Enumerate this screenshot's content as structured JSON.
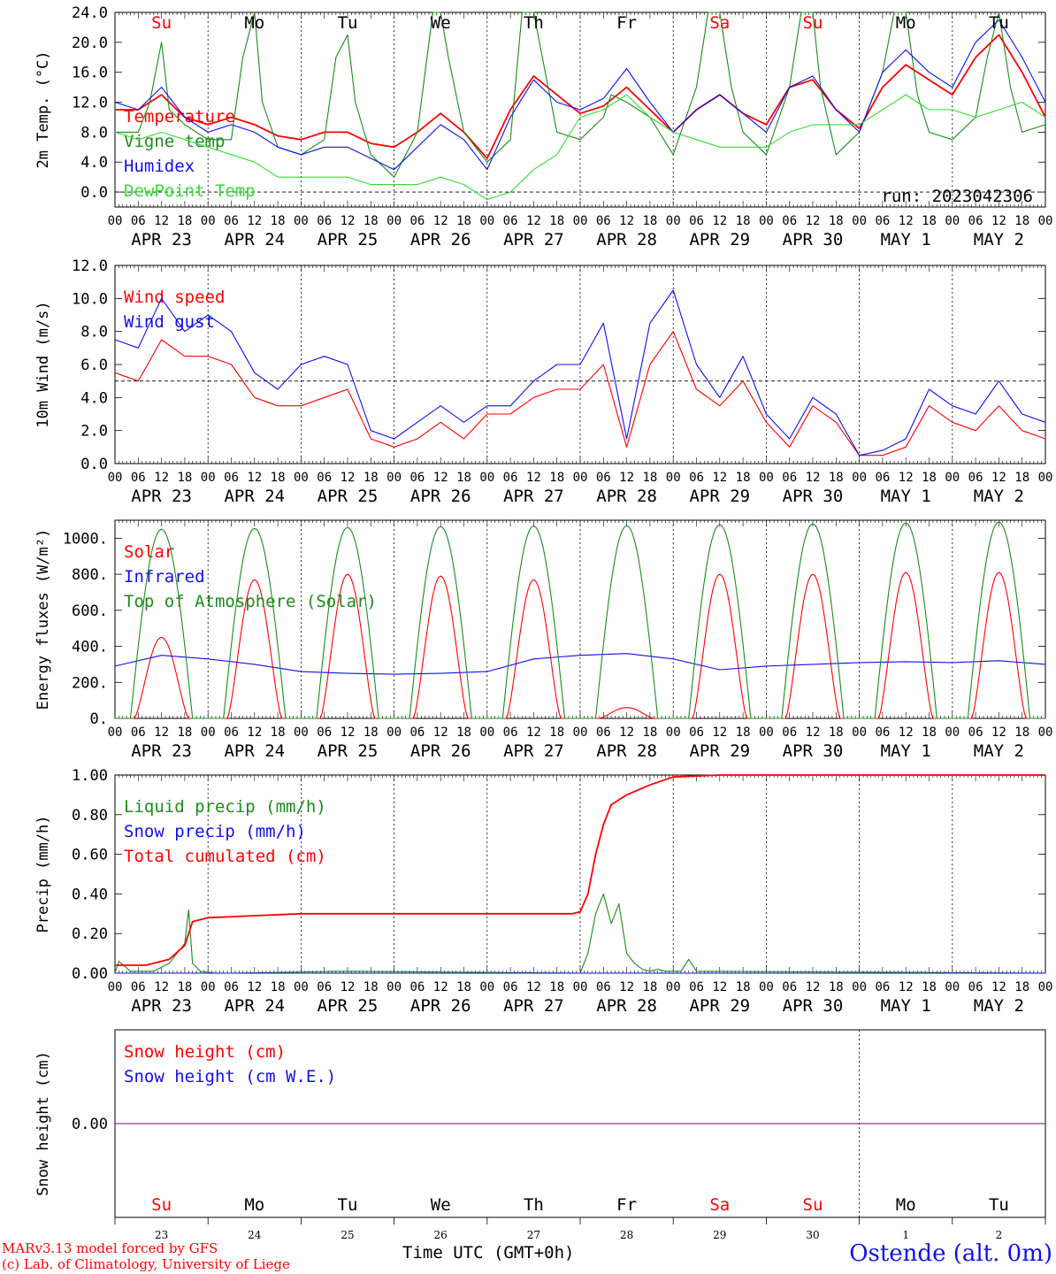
{
  "colors": {
    "red": "#ff0000",
    "green": "#1a8c1a",
    "lightgreen": "#33dd33",
    "blue": "#1010ee",
    "purple": "#800080",
    "axis": "#000000"
  },
  "footer": {
    "credit_1": "MARv3.13 model forced by GFS",
    "credit_2": "(c) Lab. of Climatology, University of Liege",
    "time_label_a": "Time UTC (GMT+0h)",
    "time_label_b": "Time UTC",
    "station": "Ostende (alt. 0m)"
  },
  "days": [
    {
      "date": "APR 23",
      "dow": "Su",
      "weekend": true,
      "num": "23"
    },
    {
      "date": "APR 24",
      "dow": "Mo",
      "weekend": false,
      "num": "24"
    },
    {
      "date": "APR 25",
      "dow": "Tu",
      "weekend": false,
      "num": "25"
    },
    {
      "date": "APR 26",
      "dow": "We",
      "weekend": false,
      "num": "26"
    },
    {
      "date": "APR 27",
      "dow": "Th",
      "weekend": false,
      "num": "27"
    },
    {
      "date": "APR 28",
      "dow": "Fr",
      "weekend": false,
      "num": "28"
    },
    {
      "date": "APR 29",
      "dow": "Sa",
      "weekend": true,
      "num": "29"
    },
    {
      "date": "APR 30",
      "dow": "Su",
      "weekend": true,
      "num": "30"
    },
    {
      "date": "MAY  1",
      "dow": "Mo",
      "weekend": false,
      "num": "1"
    },
    {
      "date": "MAY  2",
      "dow": "Tu",
      "weekend": false,
      "num": "2"
    }
  ],
  "hour_ticks": [
    "00",
    "06",
    "12",
    "18"
  ],
  "chart_data": [
    {
      "type": "line",
      "id": "temp",
      "ylabel": "2m Temp. (°C)",
      "ylim": [
        -2,
        24
      ],
      "yticks": [
        "0.0",
        "4.0",
        "8.0",
        "12.0",
        "16.0",
        "20.0",
        "24.0"
      ],
      "ytick_values": [
        0,
        4,
        8,
        12,
        16,
        20,
        24
      ],
      "ref_line": 0,
      "annotation": "run: 2023042306",
      "show_dow": true,
      "series": [
        {
          "name": "Temperature",
          "color": "red",
          "x": [
            0,
            6,
            12,
            18,
            24,
            30,
            36,
            42,
            48,
            54,
            60,
            66,
            72,
            78,
            84,
            90,
            96,
            102,
            108,
            114,
            120,
            126,
            132,
            138,
            144,
            150,
            156,
            162,
            168,
            174,
            180,
            186,
            192,
            198,
            204,
            210,
            216,
            222,
            228,
            234,
            240
          ],
          "y": [
            11,
            11,
            13,
            10,
            9,
            10,
            9,
            7.5,
            7,
            8,
            8,
            6.5,
            6,
            8,
            10.5,
            8,
            4.5,
            11,
            15.5,
            13,
            10.5,
            11.5,
            14,
            11,
            8,
            11,
            13,
            10.5,
            9,
            14,
            15,
            11,
            8.5,
            14,
            17,
            15,
            13,
            18,
            21,
            16,
            10
          ]
        },
        {
          "name": "Vigne temp",
          "color": "green",
          "x": [
            0,
            6,
            9,
            12,
            14,
            18,
            24,
            30,
            33,
            36,
            38,
            42,
            48,
            54,
            57,
            60,
            62,
            66,
            72,
            78,
            82,
            84,
            86,
            90,
            96,
            102,
            105,
            108,
            111,
            114,
            120,
            126,
            128,
            132,
            138,
            144,
            150,
            153,
            156,
            159,
            162,
            168,
            174,
            177,
            180,
            182,
            186,
            192,
            198,
            201,
            204,
            207,
            210,
            216,
            222,
            225,
            228,
            231,
            234,
            240
          ],
          "y": [
            8,
            8,
            12,
            20,
            11,
            9,
            7,
            7,
            18,
            24,
            12,
            6,
            5,
            7,
            18,
            21,
            12,
            5,
            2,
            8,
            24,
            24,
            18,
            8,
            4,
            7,
            24,
            24,
            16,
            8,
            7,
            10,
            13,
            12,
            10,
            5,
            14,
            24,
            24,
            14,
            8,
            5,
            14,
            24,
            24,
            14,
            5,
            8,
            16,
            24,
            24,
            13,
            8,
            7,
            10,
            18,
            24,
            14,
            8,
            9
          ]
        },
        {
          "name": "Humidex",
          "color": "blue",
          "x": [
            0,
            6,
            12,
            18,
            24,
            30,
            36,
            42,
            48,
            54,
            60,
            66,
            72,
            78,
            84,
            90,
            96,
            102,
            108,
            114,
            120,
            126,
            132,
            138,
            144,
            150,
            156,
            162,
            168,
            174,
            180,
            186,
            192,
            198,
            204,
            210,
            216,
            222,
            228,
            234,
            240
          ],
          "y": [
            12,
            11,
            14,
            10,
            8,
            9,
            8,
            6,
            5,
            6,
            6,
            4.5,
            3,
            6,
            9,
            7,
            3,
            10,
            15,
            12,
            11,
            12.5,
            16.5,
            12,
            8,
            11,
            13,
            10.5,
            8,
            14,
            15.5,
            11,
            8,
            16,
            19,
            16,
            14,
            20,
            23,
            18,
            12
          ]
        },
        {
          "name": "DewPoint Temp",
          "color": "lightgreen",
          "x": [
            0,
            6,
            12,
            18,
            24,
            30,
            36,
            42,
            48,
            54,
            60,
            66,
            72,
            78,
            84,
            90,
            96,
            102,
            108,
            114,
            120,
            126,
            132,
            138,
            144,
            150,
            156,
            162,
            168,
            174,
            180,
            186,
            192,
            198,
            204,
            210,
            216,
            222,
            228,
            234,
            240
          ],
          "y": [
            8,
            7,
            8,
            7,
            6,
            5,
            4,
            2,
            2,
            2,
            2,
            1,
            1,
            1,
            2,
            1,
            -1,
            0,
            3,
            5,
            10,
            11,
            13,
            10,
            8,
            7,
            6,
            6,
            6,
            8,
            9,
            9,
            9,
            11,
            13,
            11,
            11,
            10,
            11,
            12,
            10
          ]
        }
      ]
    },
    {
      "type": "line",
      "id": "wind",
      "ylabel": "10m Wind (m/s)",
      "ylim": [
        0,
        12
      ],
      "yticks": [
        "0.0",
        "2.0",
        "4.0",
        "6.0",
        "8.0",
        "10.0",
        "12.0"
      ],
      "ytick_values": [
        0,
        2,
        4,
        6,
        8,
        10,
        12
      ],
      "ref_line": 5,
      "show_dow": false,
      "series": [
        {
          "name": "Wind speed",
          "color": "red",
          "x": [
            0,
            6,
            12,
            18,
            24,
            30,
            36,
            42,
            48,
            54,
            60,
            66,
            72,
            78,
            84,
            90,
            96,
            102,
            108,
            114,
            120,
            126,
            132,
            138,
            144,
            150,
            156,
            162,
            168,
            174,
            180,
            186,
            192,
            198,
            204,
            210,
            216,
            222,
            228,
            234,
            240
          ],
          "y": [
            5.5,
            5,
            7.5,
            6.5,
            6.5,
            6,
            4,
            3.5,
            3.5,
            4,
            4.5,
            1.5,
            1,
            1.5,
            2.5,
            1.5,
            3,
            3,
            4,
            4.5,
            4.5,
            6,
            1,
            6,
            8,
            4.5,
            3.5,
            5,
            2.5,
            1,
            3.5,
            2.5,
            0.5,
            0.5,
            1,
            3.5,
            2.5,
            2,
            3.5,
            2,
            1.5
          ]
        },
        {
          "name": "Wind gust",
          "color": "blue",
          "x": [
            0,
            6,
            12,
            18,
            24,
            30,
            36,
            42,
            48,
            54,
            60,
            66,
            72,
            78,
            84,
            90,
            96,
            102,
            108,
            114,
            120,
            126,
            132,
            138,
            144,
            150,
            156,
            162,
            168,
            174,
            180,
            186,
            192,
            198,
            204,
            210,
            216,
            222,
            228,
            234,
            240
          ],
          "y": [
            7.5,
            7,
            10,
            8,
            9,
            8,
            5.5,
            4.5,
            6,
            6.5,
            6,
            2,
            1.5,
            2.5,
            3.5,
            2.5,
            3.5,
            3.5,
            5,
            6,
            6,
            8.5,
            1.5,
            8.5,
            10.5,
            6,
            4,
            6.5,
            3,
            1.5,
            4,
            3,
            0.5,
            0.8,
            1.5,
            4.5,
            3.5,
            3,
            5,
            3,
            2.5
          ]
        }
      ]
    },
    {
      "type": "line",
      "id": "energy",
      "ylabel": "Energy fluxes (W/m²)",
      "ylim": [
        0,
        1100
      ],
      "yticks": [
        "0.",
        "200.",
        "400.",
        "600.",
        "800.",
        "1000."
      ],
      "ytick_values": [
        0,
        200,
        400,
        600,
        800,
        1000
      ],
      "show_dow": false,
      "series": [
        {
          "name": "Solar",
          "color": "red",
          "peaks": [
            450,
            770,
            800,
            790,
            770,
            60,
            800,
            800,
            810,
            810
          ]
        },
        {
          "name": "Infrared",
          "color": "blue",
          "x": [
            0,
            12,
            24,
            36,
            48,
            60,
            72,
            84,
            96,
            108,
            120,
            132,
            144,
            156,
            168,
            180,
            192,
            204,
            216,
            228,
            240
          ],
          "y": [
            290,
            350,
            330,
            300,
            260,
            250,
            245,
            250,
            260,
            330,
            350,
            360,
            330,
            270,
            290,
            300,
            310,
            315,
            310,
            320,
            300
          ]
        },
        {
          "name": "Top of Atmosphere (Solar)",
          "color": "green",
          "peaks": [
            1050,
            1055,
            1060,
            1065,
            1068,
            1070,
            1075,
            1080,
            1085,
            1090
          ]
        }
      ]
    },
    {
      "type": "line",
      "id": "precip",
      "ylabel": "Precip (mm/h)",
      "ylim": [
        0,
        1
      ],
      "yticks": [
        "0.00",
        "0.20",
        "0.40",
        "0.60",
        "0.80",
        "1.00"
      ],
      "ytick_values": [
        0,
        0.2,
        0.4,
        0.6,
        0.8,
        1.0
      ],
      "show_dow": false,
      "series": [
        {
          "name": "Liquid precip (mm/h)",
          "color": "green",
          "x": [
            0,
            1,
            4,
            10,
            14,
            16,
            18,
            19,
            20,
            22,
            26,
            30,
            60,
            120,
            122,
            124,
            126,
            128,
            130,
            132,
            134,
            136,
            138,
            140,
            142,
            144,
            146,
            148,
            150,
            240
          ],
          "y": [
            0,
            0.06,
            0.01,
            0.01,
            0.05,
            0.1,
            0.15,
            0.32,
            0.05,
            0.01,
            0,
            0,
            0.01,
            0,
            0.1,
            0.3,
            0.4,
            0.25,
            0.35,
            0.1,
            0.05,
            0.02,
            0.01,
            0.02,
            0.01,
            0.01,
            0.01,
            0.07,
            0.01,
            0
          ]
        },
        {
          "name": "Snow precip (mm/h)",
          "color": "blue",
          "x": [
            0,
            240
          ],
          "y": [
            0,
            0
          ]
        },
        {
          "name": "Total cumulated (cm)",
          "color": "red",
          "x": [
            0,
            8,
            14,
            18,
            20,
            24,
            36,
            48,
            72,
            96,
            118,
            120,
            122,
            124,
            126,
            128,
            132,
            138,
            144,
            156,
            192,
            240
          ],
          "y": [
            0.04,
            0.04,
            0.07,
            0.14,
            0.26,
            0.28,
            0.29,
            0.3,
            0.3,
            0.3,
            0.3,
            0.31,
            0.4,
            0.6,
            0.75,
            0.85,
            0.9,
            0.95,
            0.99,
            1.0,
            1.0,
            1.0
          ]
        }
      ]
    },
    {
      "type": "line",
      "id": "snow",
      "ylabel": "Snow height (cm)",
      "yticks": [
        "0.00"
      ],
      "ytick_values": [
        0
      ],
      "ylim": [
        -1,
        1
      ],
      "show_dow": true,
      "series": [
        {
          "name": "Snow height (cm)",
          "color": "red",
          "x": [
            0,
            240
          ],
          "y": [
            0,
            0
          ]
        },
        {
          "name": "Snow height (cm W.E.)",
          "color": "blue",
          "x": [
            0,
            240
          ],
          "y": [
            0,
            0
          ]
        }
      ]
    }
  ]
}
